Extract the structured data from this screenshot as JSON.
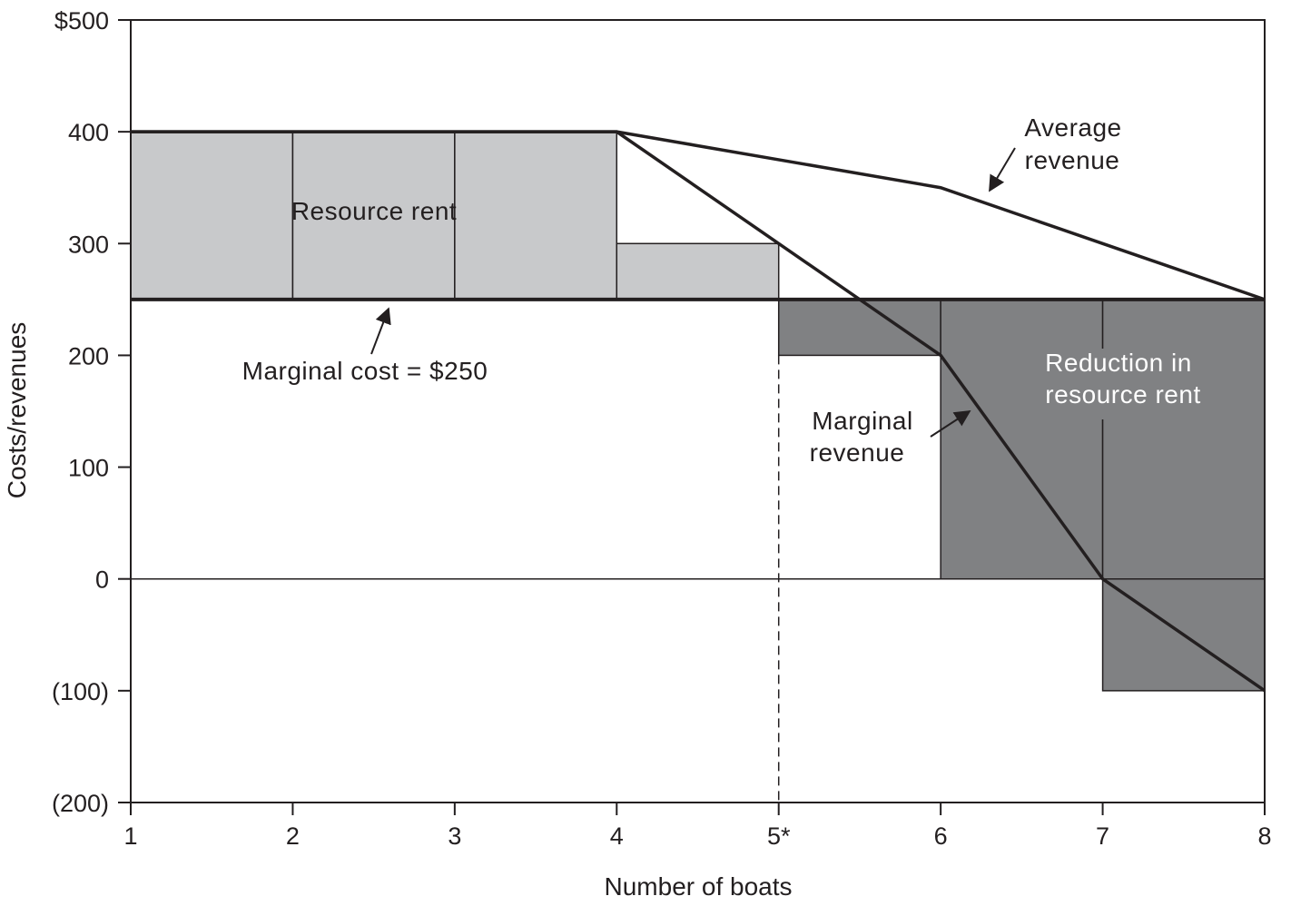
{
  "chart_data": {
    "type": "line",
    "title": "",
    "xlabel": "Number of boats",
    "ylabel": "Costs/revenues",
    "x_categories": [
      "1",
      "2",
      "3",
      "4",
      "5*",
      "6",
      "7",
      "8"
    ],
    "x_values": [
      1,
      2,
      3,
      4,
      5,
      6,
      7,
      8
    ],
    "y_tick_labels": [
      "$500",
      "400",
      "300",
      "200",
      "100",
      "0",
      "(100)",
      "(200)"
    ],
    "y_tick_values": [
      500,
      400,
      300,
      200,
      100,
      0,
      -100,
      -200
    ],
    "xlim": [
      1,
      8
    ],
    "ylim": [
      -200,
      500
    ],
    "grid": false,
    "series": [
      {
        "name": "Average revenue",
        "x": [
          1,
          2,
          3,
          4,
          5,
          6,
          7,
          8
        ],
        "y": [
          400,
          400,
          400,
          400,
          375,
          350,
          300,
          250
        ]
      },
      {
        "name": "Marginal revenue",
        "x": [
          1,
          2,
          3,
          4,
          5,
          6,
          7,
          8
        ],
        "y": [
          400,
          400,
          400,
          400,
          300,
          200,
          0,
          -100
        ]
      },
      {
        "name": "Marginal cost = $250",
        "x": [
          1,
          8
        ],
        "y": [
          250,
          250
        ]
      }
    ],
    "marginal_cost": 250,
    "optimal_boats": 5,
    "resource_rent_blocks": [
      {
        "x0": 1,
        "x1": 2,
        "y0": 250,
        "y1": 400
      },
      {
        "x0": 2,
        "x1": 3,
        "y0": 250,
        "y1": 400
      },
      {
        "x0": 3,
        "x1": 4,
        "y0": 250,
        "y1": 400
      },
      {
        "x0": 4,
        "x1": 5,
        "y0": 250,
        "y1": 300
      }
    ],
    "rent_reduction_blocks": [
      {
        "x0": 5,
        "x1": 6,
        "y0": 200,
        "y1": 250
      },
      {
        "x0": 6,
        "x1": 7,
        "y0": 0,
        "y1": 250
      },
      {
        "x0": 7,
        "x1": 8,
        "y0": -100,
        "y1": 250
      }
    ],
    "colors": {
      "resource_rent_fill": "#c8c9cb",
      "rent_reduction_fill": "#808183",
      "line": "#231f20",
      "background": "#ffffff"
    },
    "annotations": {
      "resource_rent": "Resource rent",
      "marginal_cost": "Marginal cost = $250",
      "average_revenue_line1": "Average",
      "average_revenue_line2": "revenue",
      "marginal_revenue_line1": "Marginal",
      "marginal_revenue_line2": "revenue",
      "reduction_line1": "Reduction in",
      "reduction_line2": "resource rent"
    }
  }
}
